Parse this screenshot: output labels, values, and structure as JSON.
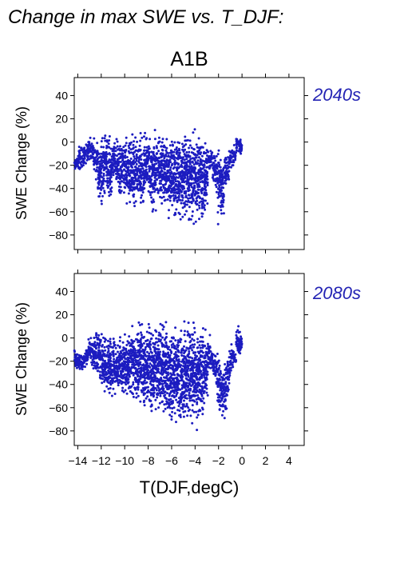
{
  "chart_data": {
    "title": "Change in max SWE vs. T_DJF:",
    "scenario": "A1B",
    "xlabel": "T(DJF,degC)",
    "ylabel": "SWE Change (%)",
    "point_color": "#1c1cc0",
    "label_color": "#2323b4",
    "xlim": [
      -14.3,
      5.3
    ],
    "ylim": [
      -87,
      50
    ],
    "xticks": [
      -14,
      -12,
      -10,
      -8,
      -6,
      -4,
      -2,
      0,
      2,
      4
    ],
    "xtick_labels": [
      "−14",
      "−12",
      "−10",
      "−8",
      "−6",
      "−4",
      "−2",
      "0",
      "2",
      "4"
    ],
    "yticks": [
      40,
      20,
      0,
      -20,
      -40,
      -60,
      -80
    ],
    "ytick_labels": [
      "40",
      "20",
      "0",
      "−20",
      "−40",
      "−60",
      "−80"
    ],
    "panels": [
      {
        "type": "scatter",
        "label": "2040s",
        "series": [
          {
            "x": [
              -14.2,
              -14,
              -13.8,
              -13.6,
              -13.4,
              -13.2,
              -13,
              -12.8,
              -12.6,
              -12.4,
              -12.2,
              -12,
              -11.8,
              -11.6,
              -11.4,
              -11.2,
              -11,
              -10.8,
              -10.6,
              -10.4,
              -10.2,
              -10,
              -9.8,
              -9.6,
              -9.4,
              -9.2,
              -9,
              -8.8,
              -8.6,
              -8.4,
              -8.2,
              -8,
              -7.8,
              -7.6,
              -7.4,
              -7.2,
              -7,
              -6.8,
              -6.6,
              -6.4,
              -6.2,
              -6,
              -5.8,
              -5.6,
              -5.4,
              -5.2,
              -5,
              -4.8,
              -4.6,
              -4.4,
              -4.2,
              -4,
              -3.8,
              -3.6,
              -3.4,
              -3.2,
              -3,
              -2.8,
              -2.6,
              -2.4,
              -2.2,
              -2,
              -1.8,
              -1.6,
              -1.4,
              -1.2,
              -1,
              -0.8,
              -0.6,
              -0.4,
              -0.2,
              -0.1
            ],
            "y_max": [
              -14,
              -5,
              -2,
              0,
              3,
              5,
              7,
              8,
              8,
              7,
              6,
              8,
              10,
              12,
              12,
              10,
              8,
              6,
              8,
              10,
              12,
              13,
              10,
              12,
              10,
              12,
              13,
              14,
              16,
              15,
              12,
              10,
              12,
              14,
              16,
              14,
              12,
              15,
              16,
              14,
              13,
              15,
              16,
              14,
              15,
              13,
              14,
              15,
              14,
              15,
              16,
              15,
              14,
              15,
              13,
              10,
              8,
              -3,
              -5,
              -5,
              -5,
              2,
              -2,
              -8,
              -5,
              -8,
              -3,
              -5,
              0,
              8,
              5,
              0
            ],
            "y_min": [
              -24,
              -28,
              -30,
              -25,
              -22,
              -20,
              -18,
              -22,
              -30,
              -40,
              -58,
              -62,
              -55,
              -50,
              -55,
              -58,
              -40,
              -42,
              -45,
              -58,
              -55,
              -52,
              -60,
              -58,
              -62,
              -65,
              -60,
              -55,
              -60,
              -62,
              -50,
              -55,
              -65,
              -68,
              -62,
              -58,
              -65,
              -70,
              -72,
              -65,
              -75,
              -70,
              -72,
              -74,
              -70,
              -74,
              -73,
              -76,
              -78,
              -75,
              -80,
              -73,
              -76,
              -78,
              -82,
              -74,
              -62,
              -28,
              -25,
              -40,
              -48,
              -75,
              -72,
              -68,
              -50,
              -38,
              -25,
              -22,
              -18,
              -14,
              -10,
              -12
            ]
          }
        ]
      },
      {
        "type": "scatter",
        "label": "2080s",
        "series": [
          {
            "x": [
              -14.2,
              -14,
              -13.8,
              -13.6,
              -13.4,
              -13.2,
              -13,
              -12.8,
              -12.6,
              -12.4,
              -12.2,
              -12,
              -11.8,
              -11.6,
              -11.4,
              -11.2,
              -11,
              -10.8,
              -10.6,
              -10.4,
              -10.2,
              -10,
              -9.8,
              -9.6,
              -9.4,
              -9.2,
              -9,
              -8.8,
              -8.6,
              -8.4,
              -8.2,
              -8,
              -7.8,
              -7.6,
              -7.4,
              -7.2,
              -7,
              -6.8,
              -6.6,
              -6.4,
              -6.2,
              -6,
              -5.8,
              -5.6,
              -5.4,
              -5.2,
              -5,
              -4.8,
              -4.6,
              -4.4,
              -4.2,
              -4,
              -3.8,
              -3.6,
              -3.4,
              -3.2,
              -3,
              -2.8,
              -2.6,
              -2.4,
              -2.2,
              -2,
              -1.8,
              -1.6,
              -1.4,
              -1.2,
              -1,
              -0.8,
              -0.6,
              -0.4,
              -0.2,
              -0.1
            ],
            "y_max": [
              -7,
              -8,
              -10,
              -12,
              -10,
              -5,
              0,
              3,
              5,
              12,
              13,
              14,
              12,
              10,
              8,
              12,
              10,
              8,
              5,
              8,
              10,
              12,
              14,
              12,
              15,
              16,
              18,
              20,
              22,
              20,
              18,
              20,
              22,
              21,
              24,
              22,
              20,
              22,
              24,
              23,
              21,
              22,
              24,
              22,
              23,
              21,
              22,
              23,
              24,
              22,
              23,
              21,
              22,
              23,
              20,
              15,
              10,
              5,
              -5,
              -8,
              -10,
              -8,
              -10,
              -15,
              -15,
              -5,
              -2,
              0,
              -10,
              15,
              12,
              5
            ],
            "y_min": [
              -30,
              -32,
              -32,
              -30,
              -28,
              -25,
              -22,
              -25,
              -30,
              -38,
              -45,
              -50,
              -55,
              -58,
              -62,
              -65,
              -60,
              -55,
              -50,
              -55,
              -60,
              -65,
              -62,
              -60,
              -58,
              -62,
              -65,
              -68,
              -66,
              -70,
              -68,
              -65,
              -70,
              -72,
              -70,
              -74,
              -75,
              -73,
              -78,
              -76,
              -80,
              -79,
              -82,
              -81,
              -80,
              -82,
              -84,
              -82,
              -83,
              -85,
              -82,
              -84,
              -83,
              -82,
              -80,
              -70,
              -60,
              -30,
              -32,
              -40,
              -45,
              -70,
              -74,
              -78,
              -75,
              -62,
              -40,
              -30,
              -25,
              -20,
              -18,
              -12
            ]
          }
        ]
      }
    ]
  }
}
